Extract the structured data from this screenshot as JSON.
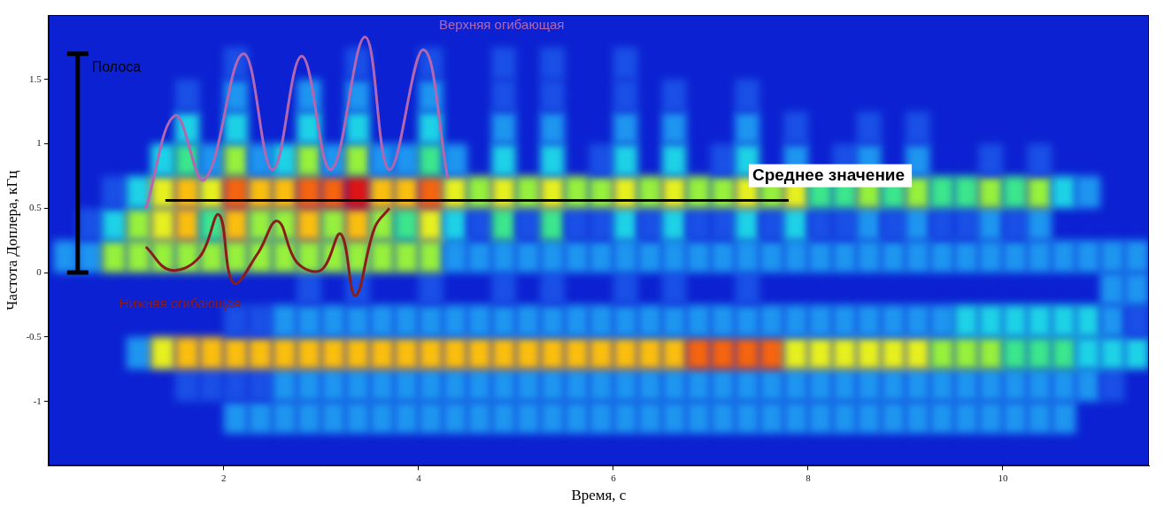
{
  "chart_data": {
    "type": "heatmap",
    "x_label": "Время, с",
    "y_label": "Частота Доплера, кГц",
    "xlim": [
      0.2,
      11.5
    ],
    "xticks": [
      2,
      4,
      6,
      8,
      10
    ],
    "ylim": [
      -1.5,
      2
    ],
    "yticks": [
      -1,
      -0.5,
      0,
      0.5,
      1,
      1.5
    ],
    "grid": false,
    "cells": {
      "x": [
        0.375,
        0.625,
        0.875,
        1.125,
        1.375,
        1.625,
        1.875,
        2.125,
        2.375,
        2.625,
        2.875,
        3.125,
        3.375,
        3.625,
        3.875,
        4.125,
        4.375,
        4.625,
        4.875,
        5.125,
        5.375,
        5.625,
        5.875,
        6.125,
        6.375,
        6.625,
        6.875,
        7.125,
        7.375,
        7.625,
        7.875,
        8.125,
        8.375,
        8.625,
        8.875,
        9.125,
        9.375,
        9.625,
        9.875,
        10.125,
        10.375,
        10.625,
        10.875,
        11.125,
        11.375
      ],
      "y": [
        -1.375,
        -1.125,
        -0.875,
        -0.625,
        -0.375,
        -0.125,
        0.125,
        0.375,
        0.625,
        0.875,
        1.125,
        1.375,
        1.625,
        1.875
      ],
      "zlim": [
        0,
        9
      ],
      "z": [
        [
          0,
          0,
          0,
          0,
          0,
          0,
          0,
          0,
          0,
          0,
          0,
          0,
          0,
          0,
          0,
          0,
          0,
          0,
          0,
          0,
          0,
          0,
          0,
          0,
          0,
          0,
          0,
          0,
          0,
          0,
          0,
          0,
          0,
          0,
          0,
          0,
          0,
          0,
          0,
          0,
          0,
          0,
          0,
          0,
          0
        ],
        [
          0,
          0,
          0,
          0,
          0,
          0,
          0,
          2,
          2,
          2,
          2,
          2,
          2,
          2,
          2,
          2,
          2,
          2,
          2,
          2,
          2,
          2,
          2,
          2,
          2,
          2,
          2,
          2,
          2,
          2,
          2,
          2,
          2,
          2,
          2,
          2,
          2,
          2,
          2,
          2,
          2,
          2,
          0,
          0,
          0
        ],
        [
          0,
          0,
          0,
          0,
          0,
          1,
          1,
          1,
          1,
          2,
          2,
          2,
          2,
          2,
          2,
          2,
          2,
          2,
          2,
          2,
          2,
          2,
          2,
          2,
          2,
          2,
          2,
          2,
          2,
          2,
          2,
          2,
          2,
          2,
          2,
          2,
          2,
          2,
          2,
          2,
          2,
          2,
          2,
          1,
          0
        ],
        [
          0,
          0,
          0,
          2,
          6,
          7,
          7,
          7,
          7,
          7,
          7,
          7,
          7,
          7,
          7,
          7,
          7,
          7,
          7,
          7,
          7,
          7,
          7,
          7,
          7,
          7,
          8,
          8,
          8,
          8,
          6,
          6,
          6,
          6,
          6,
          6,
          5,
          5,
          5,
          4,
          4,
          4,
          3,
          3,
          3
        ],
        [
          0,
          0,
          0,
          0,
          0,
          0,
          0,
          1,
          1,
          2,
          2,
          2,
          2,
          2,
          2,
          2,
          2,
          2,
          2,
          2,
          2,
          2,
          2,
          2,
          2,
          2,
          2,
          2,
          2,
          2,
          2,
          2,
          2,
          2,
          2,
          2,
          2,
          3,
          3,
          3,
          3,
          3,
          3,
          2,
          1
        ],
        [
          0,
          0,
          0,
          0,
          0,
          0,
          0,
          0,
          0,
          0,
          1,
          0,
          1,
          0,
          0,
          1,
          0,
          0,
          1,
          0,
          1,
          0,
          0,
          1,
          0,
          1,
          0,
          0,
          1,
          0,
          0,
          0,
          0,
          0,
          0,
          0,
          0,
          0,
          0,
          0,
          0,
          0,
          0,
          2,
          2
        ],
        [
          2,
          2,
          5,
          5,
          5,
          5,
          5,
          5,
          5,
          5,
          5,
          5,
          5,
          5,
          5,
          5,
          2,
          2,
          2,
          2,
          2,
          2,
          2,
          2,
          2,
          2,
          2,
          2,
          2,
          2,
          2,
          2,
          2,
          2,
          2,
          2,
          2,
          2,
          2,
          2,
          2,
          2,
          2,
          2,
          2
        ],
        [
          0,
          1,
          3,
          5,
          6,
          7,
          4,
          7,
          5,
          5,
          7,
          5,
          7,
          5,
          4,
          6,
          3,
          1,
          4,
          1,
          4,
          1,
          1,
          3,
          1,
          3,
          1,
          1,
          3,
          1,
          3,
          1,
          1,
          2,
          1,
          2,
          1,
          1,
          2,
          1,
          2,
          0,
          0,
          0,
          0
        ],
        [
          0,
          0,
          1,
          3,
          6,
          7,
          6,
          8,
          7,
          7,
          8,
          8,
          9,
          7,
          7,
          8,
          6,
          5,
          6,
          5,
          6,
          5,
          5,
          6,
          5,
          6,
          5,
          5,
          6,
          5,
          6,
          4,
          4,
          5,
          4,
          5,
          4,
          4,
          5,
          4,
          5,
          3,
          2,
          0,
          0
        ],
        [
          0,
          0,
          0,
          0,
          3,
          4,
          2,
          5,
          2,
          3,
          5,
          2,
          5,
          2,
          2,
          4,
          2,
          0,
          3,
          0,
          3,
          0,
          1,
          3,
          0,
          3,
          0,
          1,
          3,
          0,
          2,
          0,
          1,
          2,
          0,
          2,
          0,
          0,
          1,
          0,
          1,
          0,
          0,
          0,
          0
        ],
        [
          0,
          0,
          0,
          0,
          0,
          3,
          0,
          3,
          0,
          0,
          3,
          0,
          3,
          0,
          0,
          3,
          0,
          0,
          2,
          0,
          2,
          0,
          0,
          2,
          0,
          2,
          0,
          0,
          2,
          0,
          1,
          0,
          0,
          1,
          0,
          1,
          0,
          0,
          0,
          0,
          0,
          0,
          0,
          0,
          0
        ],
        [
          0,
          0,
          0,
          0,
          0,
          1,
          0,
          2,
          0,
          0,
          2,
          0,
          2,
          0,
          0,
          2,
          0,
          0,
          1,
          0,
          1,
          0,
          0,
          1,
          0,
          1,
          0,
          0,
          1,
          0,
          0,
          0,
          0,
          0,
          0,
          0,
          0,
          0,
          0,
          0,
          0,
          0,
          0,
          0,
          0
        ],
        [
          0,
          0,
          0,
          0,
          0,
          0,
          0,
          1,
          0,
          0,
          0,
          0,
          1,
          0,
          0,
          1,
          0,
          0,
          1,
          0,
          1,
          0,
          0,
          1,
          0,
          0,
          0,
          0,
          0,
          0,
          0,
          0,
          0,
          0,
          0,
          0,
          0,
          0,
          0,
          0,
          0,
          0,
          0,
          0,
          0
        ],
        [
          0,
          0,
          0,
          0,
          0,
          0,
          0,
          0,
          0,
          0,
          0,
          0,
          0,
          0,
          0,
          0,
          0,
          0,
          0,
          0,
          0,
          0,
          0,
          0,
          0,
          0,
          0,
          0,
          0,
          0,
          0,
          0,
          0,
          0,
          0,
          0,
          0,
          0,
          0,
          0,
          0,
          0,
          0,
          0,
          0
        ]
      ]
    },
    "series": [
      {
        "name": "Верхняя огибающая",
        "type": "line",
        "color": "#b466b0",
        "x": [
          1.2,
          1.5,
          1.8,
          2.2,
          2.5,
          2.8,
          3.1,
          3.45,
          3.7,
          4.05,
          4.3
        ],
        "values": [
          0.5,
          1.22,
          0.72,
          1.7,
          0.8,
          1.68,
          0.8,
          1.83,
          0.8,
          1.73,
          0.73
        ]
      },
      {
        "name": "Нижняя огибающая",
        "type": "line",
        "color": "#8b1c1c",
        "x": [
          1.2,
          1.45,
          1.75,
          1.95,
          2.1,
          2.35,
          2.55,
          2.75,
          3.0,
          3.2,
          3.35,
          3.55,
          3.7
        ],
        "values": [
          0.2,
          0.02,
          0.12,
          0.45,
          -0.08,
          0.15,
          0.4,
          0.08,
          0.02,
          0.3,
          -0.18,
          0.35,
          0.5
        ]
      },
      {
        "name": "Среднее значение",
        "type": "line",
        "color": "#000000",
        "x": [
          1.4,
          7.8
        ],
        "values": [
          0.56,
          0.56
        ]
      },
      {
        "name": "Полоса",
        "type": "range",
        "color": "#000000",
        "x": [
          0.5,
          0.5
        ],
        "values": [
          0,
          1.7
        ]
      }
    ]
  }
}
